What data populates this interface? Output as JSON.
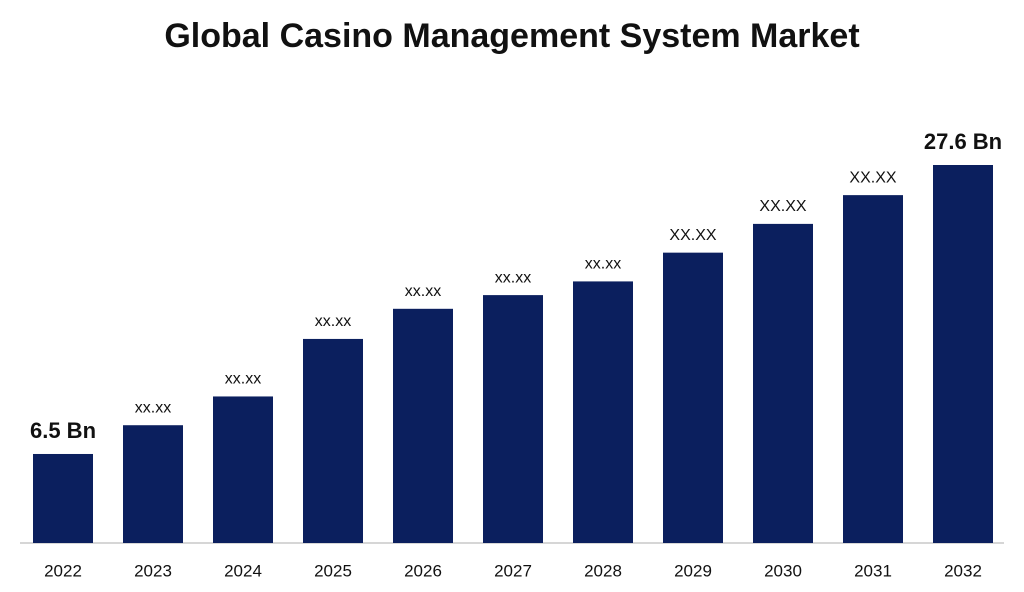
{
  "chart_data": {
    "type": "bar",
    "title": "Global Casino Management System Market",
    "categories": [
      "2022",
      "2023",
      "2024",
      "2025",
      "2026",
      "2027",
      "2028",
      "2029",
      "2030",
      "2031",
      "2032"
    ],
    "values": [
      6.5,
      8.6,
      10.7,
      14.9,
      17.1,
      18.1,
      19.1,
      21.2,
      23.3,
      25.4,
      27.6
    ],
    "value_labels": [
      "6.5 Bn",
      "xx.xx",
      "xx.xx",
      "xx.xx",
      "xx.xx",
      "xx.xx",
      "xx.xx",
      "XX.XX",
      "XX.XX",
      "XX.XX",
      "27.6 Bn"
    ],
    "color": "#0b1f5e"
  }
}
